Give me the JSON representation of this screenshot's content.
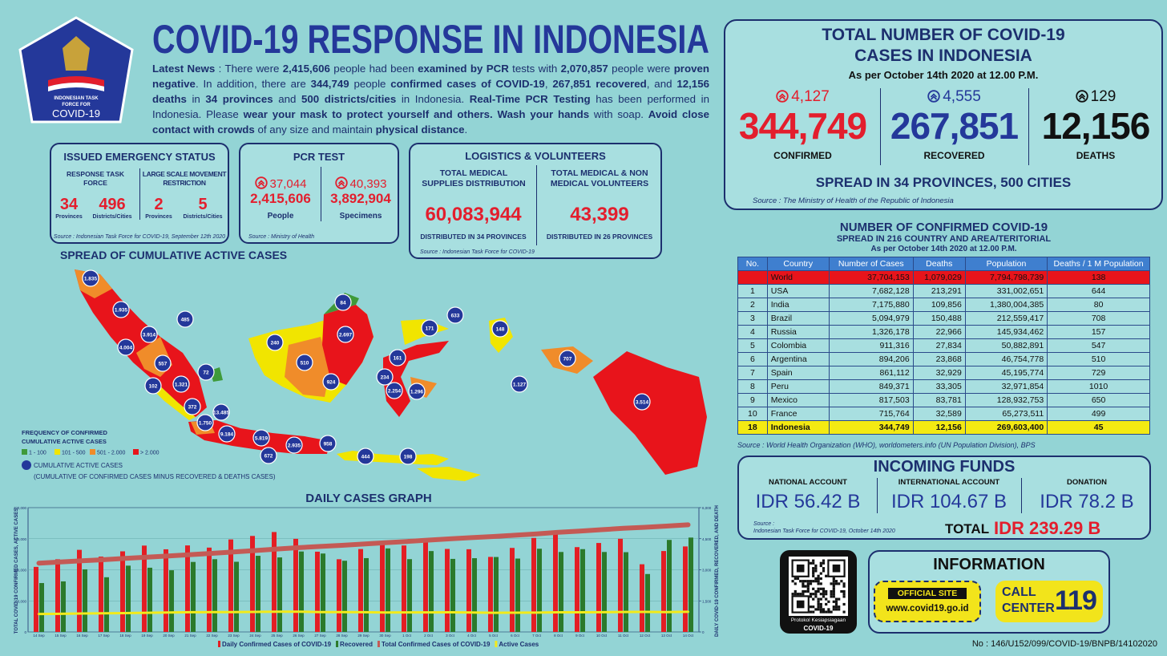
{
  "logo": {
    "lines": [
      "INDONESIAN TASK",
      "FORCE FOR",
      "COVID-19"
    ]
  },
  "header": {
    "title": "COVID-19 RESPONSE IN INDONESIA",
    "news": [
      {
        "text": "Latest News",
        "bold": true
      },
      {
        "text": " : There were ",
        "bold": false
      },
      {
        "text": "2,415,606",
        "bold": true
      },
      {
        "text": " people had been ",
        "bold": false
      },
      {
        "text": "examined by PCR",
        "bold": true
      },
      {
        "text": " tests with ",
        "bold": false
      },
      {
        "text": "2,070,857",
        "bold": true
      },
      {
        "text": " people were ",
        "bold": false
      },
      {
        "text": "proven negative",
        "bold": true
      },
      {
        "text": ". In addition, there are ",
        "bold": false
      },
      {
        "text": "344,749",
        "bold": true
      },
      {
        "text": " people ",
        "bold": false
      },
      {
        "text": "confirmed cases of COVID-19",
        "bold": true
      },
      {
        "text": ", ",
        "bold": false
      },
      {
        "text": "267,851 recovered",
        "bold": true
      },
      {
        "text": ", and ",
        "bold": false
      },
      {
        "text": "12,156 deaths",
        "bold": true
      },
      {
        "text": " in ",
        "bold": false
      },
      {
        "text": "34 provinces",
        "bold": true
      },
      {
        "text": " and ",
        "bold": false
      },
      {
        "text": "500 districts/cities",
        "bold": true
      },
      {
        "text": " in Indonesia. ",
        "bold": false
      },
      {
        "text": "Real-Time PCR Testing",
        "bold": true
      },
      {
        "text": " has been performed in Indonesia. Please ",
        "bold": false
      },
      {
        "text": "wear your mask to protect yourself and others. Wash your hands",
        "bold": true
      },
      {
        "text": " with soap. ",
        "bold": false
      },
      {
        "text": "Avoid close contact with crowds",
        "bold": true
      },
      {
        "text": " of any size and maintain ",
        "bold": false
      },
      {
        "text": "physical distance",
        "bold": true
      },
      {
        "text": ".",
        "bold": false
      }
    ]
  },
  "emergency": {
    "title": "ISSUED EMERGENCY STATUS",
    "groups": [
      {
        "label": "RESPONSE TASK FORCE",
        "items": [
          {
            "value": "34",
            "unit": "Provinces"
          },
          {
            "value": "496",
            "unit": "Districts/Cities"
          }
        ]
      },
      {
        "label": "LARGE SCALE MOVEMENT RESTRICTION",
        "items": [
          {
            "value": "2",
            "unit": "Provinces"
          },
          {
            "value": "5",
            "unit": "Districts/Cities"
          }
        ]
      }
    ],
    "source": "Source : Indonesian Task Force for COVID-19, September 12th 2020"
  },
  "pcr": {
    "title": "PCR TEST",
    "items": [
      {
        "delta": "37,044",
        "value": "2,415,606",
        "label": "People"
      },
      {
        "delta": "40,393",
        "value": "3,892,904",
        "label": "Specimens"
      }
    ],
    "source": "Source : Ministry of Health"
  },
  "logistics": {
    "title": "LOGISTICS & VOLUNTEERS",
    "items": [
      {
        "label": "TOTAL MEDICAL SUPPLIES DISTRIBUTION",
        "value": "60,083,944",
        "note": "DISTRIBUTED IN 34 PROVINCES"
      },
      {
        "label": "TOTAL MEDICAL & NON MEDICAL VOLUNTEERS",
        "value": "43,399",
        "note": "DISTRIBUTED IN 26 PROVINCES"
      }
    ],
    "source": "Source : Indonesian Task Force for COVID-19"
  },
  "map": {
    "title": "SPREAD OF CUMULATIVE ACTIVE CASES",
    "legend_title": [
      "FREQUENCY OF CONFIRMED",
      "CUMULATIVE ACTIVE CASES"
    ],
    "legend": [
      {
        "label": "1 - 100",
        "color": "#3f9a3a"
      },
      {
        "label": "101 - 500",
        "color": "#f1e500"
      },
      {
        "label": "501 - 2.000",
        "color": "#f08c2a"
      },
      {
        "label": "> 2.000",
        "color": "#e8141b"
      }
    ],
    "circle_label": "CUMULATIVE ACTIVE CASES",
    "circle_note": "(CUMULATIVE OF CONFIRMED CASES MINUS RECOVERED & DEATHS CASES)",
    "markers": [
      "1.835",
      "1.935",
      "3.914",
      "4.004",
      "485",
      "557",
      "72",
      "1.321",
      "102",
      "372",
      "1.750",
      "13.485",
      "9.184",
      "5.819",
      "2.935",
      "672",
      "958",
      "444",
      "198",
      "240",
      "510",
      "84",
      "2.697",
      "924",
      "161",
      "234",
      "2.254",
      "1.296",
      "171",
      "633",
      "148",
      "707",
      "1.127",
      "3.514"
    ]
  },
  "totals": {
    "title": [
      "TOTAL NUMBER OF COVID-19",
      "CASES IN INDONESIA"
    ],
    "date": "As per October 14th 2020 at 12.00 P.M.",
    "items": [
      {
        "delta": "4,127",
        "value": "344,749",
        "label": "CONFIRMED",
        "color": "#e31e2d"
      },
      {
        "delta": "4,555",
        "value": "267,851",
        "label": "RECOVERED",
        "color": "#24389a"
      },
      {
        "delta": "129",
        "value": "12,156",
        "label": "DEATHS",
        "color": "#111111"
      }
    ],
    "spread": "SPREAD IN 34 PROVINCES, 500 CITIES",
    "source": "Source : The Ministry of Health of the Republic of Indonesia"
  },
  "world": {
    "title": "NUMBER OF CONFIRMED COVID-19",
    "subtitle": "SPREAD IN 216 COUNTRY AND AREA/TERITORIAL",
    "date": "As per October 14th 2020 at 12.00 P.M.",
    "columns": [
      "No.",
      "Country",
      "Number of Cases",
      "Deaths",
      "Population",
      "Deaths / 1 M Population"
    ],
    "rows": [
      [
        null,
        "World",
        "37,704,153",
        "1,079,029",
        "7,794,798,739",
        "138"
      ],
      [
        "1",
        "USA",
        "7,682,128",
        "213,291",
        "331,002,651",
        "644"
      ],
      [
        "2",
        "India",
        "7,175,880",
        "109,856",
        "1,380,004,385",
        "80"
      ],
      [
        "3",
        "Brazil",
        "5,094,979",
        "150,488",
        "212,559,417",
        "708"
      ],
      [
        "4",
        "Russia",
        "1,326,178",
        "22,966",
        "145,934,462",
        "157"
      ],
      [
        "5",
        "Colombia",
        "911,316",
        "27,834",
        "50,882,891",
        "547"
      ],
      [
        "6",
        "Argentina",
        "894,206",
        "23,868",
        "46,754,778",
        "510"
      ],
      [
        "7",
        "Spain",
        "861,112",
        "32,929",
        "45,195,774",
        "729"
      ],
      [
        "8",
        "Peru",
        "849,371",
        "33,305",
        "32,971,854",
        "1010"
      ],
      [
        "9",
        "Mexico",
        "817,503",
        "83,781",
        "128,932,753",
        "650"
      ],
      [
        "10",
        "France",
        "715,764",
        "32,589",
        "65,273,511",
        "499"
      ],
      [
        "18",
        "Indonesia",
        "344,749",
        "12,156",
        "269,603,400",
        "45"
      ]
    ],
    "source": "Source : World Health Organization (WHO), worldometers.info (UN Population Division), BPS"
  },
  "funds": {
    "title": "INCOMING FUNDS",
    "items": [
      {
        "label": "NATIONAL ACCOUNT",
        "value": "IDR 56.42 B"
      },
      {
        "label": "INTERNATIONAL ACCOUNT",
        "value": "IDR 104.67 B"
      },
      {
        "label": "DONATION",
        "value": "IDR 78.2 B"
      }
    ],
    "source": [
      "Source :",
      "Indonesian Task Force for COVID-19, October 14th 2020"
    ],
    "total_label": "TOTAL",
    "total_value": "IDR 239.29 B"
  },
  "info": {
    "qr_caption": [
      "Protokol Kesiapsiagaan",
      "COVID-19"
    ],
    "title": "INFORMATION",
    "official_label": "OFFICIAL SITE",
    "url": "www.covid19.go.id",
    "call": [
      "CALL",
      "CENTER"
    ],
    "call_number": "119"
  },
  "footer": {
    "doc_no": "No : 146/U152/099/COVID-19/BNPB/14102020"
  },
  "chart_data": {
    "type": "bar",
    "title": "DAILY CASES GRAPH",
    "y_label": "TOTAL COVID-19 CONFIRMED CASES, ACTIVE CASES",
    "y2_label": "DAILY COVID-19 CONFIRMED, RECOVERED, AND DEATH",
    "categories": [
      "14 Sep",
      "15 Sep",
      "16 Sep",
      "17 Sep",
      "18 Sep",
      "19 Sep",
      "20 Sep",
      "21 Sep",
      "22 Sep",
      "23 Sep",
      "24 Sep",
      "25 Sep",
      "26 Sep",
      "27 Sep",
      "28 Sep",
      "29 Sep",
      "30 Sep",
      "1 Oct",
      "2 Oct",
      "3 Oct",
      "4 Oct",
      "5 Oct",
      "6 Oct",
      "7 Oct",
      "8 Oct",
      "9 Oct",
      "10 Oct",
      "11 Oct",
      "12 Oct",
      "13 Oct",
      "14 Oct"
    ],
    "ylim": [
      0,
      400000
    ],
    "yticks": [
      0,
      {
        "value": 100000,
        "label": "100,000"
      },
      {
        "value": 200000,
        "label": "200,000"
      },
      {
        "value": 300000,
        "label": "300,000"
      },
      {
        "value": 400000,
        "label": "400,000"
      }
    ],
    "y2lim": [
      0,
      6000
    ],
    "y2ticks": [
      0,
      {
        "value": 1500,
        "label": "1,500"
      },
      {
        "value": 3000,
        "label": "3,000"
      },
      {
        "value": 4500,
        "label": "4,500"
      },
      {
        "value": 6000,
        "label": "6,000"
      }
    ],
    "grid": true,
    "series": [
      {
        "name": "Daily Confirmed Cases of COVID-19",
        "type": "bar",
        "axis": "y2",
        "color": "#e31e24",
        "values": [
          3141,
          3507,
          3963,
          3635,
          3891,
          4168,
          3989,
          4176,
          4071,
          4465,
          4634,
          4823,
          4494,
          3874,
          3509,
          4002,
          4284,
          4174,
          4317,
          4007,
          3992,
          3622,
          4056,
          4538,
          4850,
          4094,
          4294,
          4497,
          3267,
          3906,
          4127
        ]
      },
      {
        "name": "Recovered",
        "type": "bar",
        "axis": "y2",
        "color": "#2b7a2b",
        "values": [
          2360,
          2440,
          3021,
          2640,
          3200,
          3100,
          2977,
          3379,
          3512,
          3387,
          3676,
          3597,
          3883,
          3785,
          3436,
          3563,
          4032,
          3514,
          3904,
          3526,
          3560,
          3617,
          3542,
          4016,
          3860,
          3997,
          3860,
          3850,
          2796,
          4442,
          4555
        ]
      },
      {
        "name": "Total Confirmed Cases of COVID-19",
        "type": "line",
        "color": "#c45a55",
        "values": [
          221523,
          225030,
          228993,
          232628,
          236519,
          240687,
          244676,
          248852,
          252923,
          257388,
          262022,
          266845,
          271339,
          275213,
          278722,
          282724,
          287008,
          291182,
          295499,
          299506,
          303498,
          307120,
          311176,
          315714,
          320564,
          324658,
          328952,
          333449,
          336716,
          340622,
          344749
        ]
      },
      {
        "name": "Active Cases",
        "type": "line",
        "color": "#f2ea1b",
        "values": [
          57796,
          58378,
          59453,
          60154,
          60694,
          61686,
          62722,
          63415,
          63851,
          64032,
          64617,
          65241,
          65299,
          63905,
          64027,
          63500,
          62823,
          63025,
          62945,
          63200,
          62537,
          61667,
          61909,
          62112,
          63193,
          63115,
          63492,
          64132,
          64566,
          64020,
          64742
        ]
      }
    ]
  }
}
